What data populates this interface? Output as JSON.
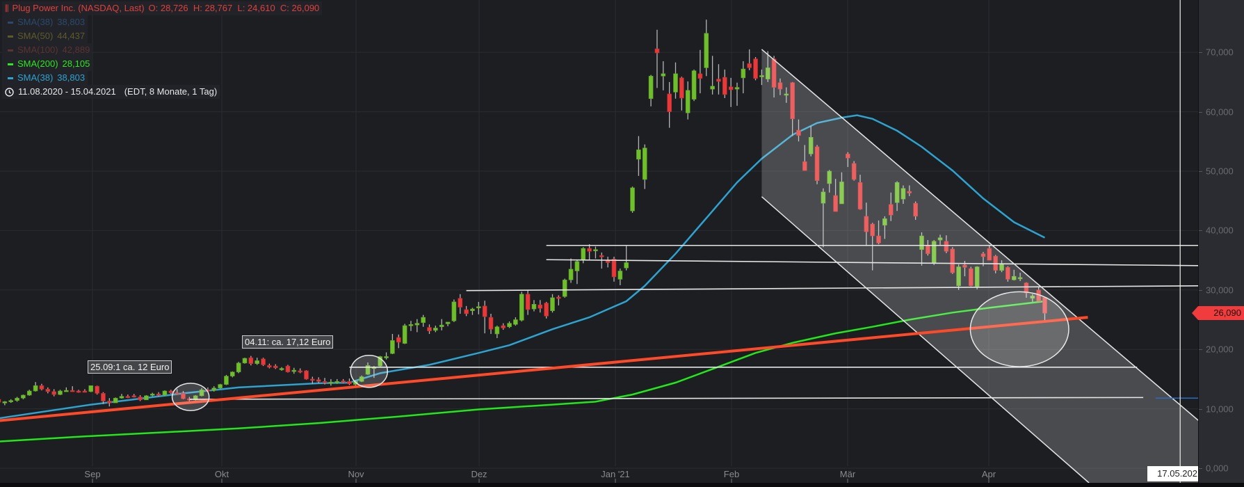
{
  "legend": {
    "title": "Plug Power Inc. (NASDAQ, Last)",
    "ohlc": "O: 28,726  H: 28,767  L: 24,610  C: 26,090",
    "indicators": [
      {
        "label": "SMA(38)",
        "value": "38,803",
        "color": "#2b4a6b"
      },
      {
        "label": "SMA(50)",
        "value": "44,437",
        "color": "#5f5a2c"
      },
      {
        "label": "SMA(100)",
        "value": "42,889",
        "color": "#5b3330"
      },
      {
        "label": "SMA(200)",
        "value": "28,105",
        "color": "#2ee81f"
      },
      {
        "label": "SMA(38)",
        "value": "38,803",
        "color": "#2ea3cf"
      }
    ],
    "range": "11.08.2020 - 15.04.2021",
    "range_info": "(EDT, 8 Monate, 1 Tag)"
  },
  "price_axis": {
    "labels": [
      "0,000",
      "10,000",
      "20,000",
      "30,000",
      "40,000",
      "50,000",
      "60,000",
      "70,000"
    ],
    "last_price_label": "26,090",
    "last_price": 26.09
  },
  "time_axis": {
    "labels": [
      "Sep",
      "Okt",
      "Nov",
      "Dez",
      "Jan '21",
      "Feb",
      "Mär",
      "Apr"
    ],
    "crosshair_date": "17.05.202"
  },
  "annotations": {
    "note1": "25.09:1 ca. 12 Euro",
    "note2": "04.11: ca. 17,12 Euro"
  },
  "colors": {
    "up": "#6fbe2c",
    "down": "#e8393a",
    "wick": "#b5b5b5",
    "trendline": "#ff4a2a",
    "drawing": "#e6e6e6"
  },
  "chart_data": {
    "type": "candlestick",
    "ylim": [
      0,
      78
    ],
    "grid": true,
    "candles_ohlc": [
      [
        11.6,
        11.9,
        10.9,
        11.1
      ],
      [
        11.0,
        11.3,
        10.6,
        11.2
      ],
      [
        11.3,
        11.6,
        11.0,
        11.4
      ],
      [
        11.4,
        12.0,
        11.2,
        11.8
      ],
      [
        11.8,
        12.4,
        11.6,
        12.3
      ],
      [
        12.3,
        13.2,
        12.2,
        13.0
      ],
      [
        13.0,
        14.5,
        12.9,
        13.9
      ],
      [
        13.9,
        14.2,
        13.1,
        13.3
      ],
      [
        13.3,
        13.6,
        12.6,
        12.9
      ],
      [
        12.9,
        13.3,
        12.1,
        12.4
      ],
      [
        12.4,
        13.2,
        12.3,
        13.0
      ],
      [
        13.0,
        13.6,
        12.9,
        13.1
      ],
      [
        13.1,
        13.8,
        12.9,
        13.0
      ],
      [
        13.0,
        13.2,
        12.7,
        12.9
      ],
      [
        13.0,
        13.3,
        12.8,
        12.9
      ],
      [
        12.9,
        13.9,
        12.8,
        13.9
      ],
      [
        13.8,
        13.9,
        12.4,
        12.6
      ],
      [
        12.6,
        12.8,
        10.8,
        11.3
      ],
      [
        11.3,
        11.8,
        10.4,
        11.0
      ],
      [
        11.0,
        11.9,
        11.0,
        11.8
      ],
      [
        11.8,
        12.5,
        11.7,
        12.1
      ],
      [
        12.1,
        12.4,
        11.8,
        12.0
      ],
      [
        12.2,
        12.5,
        11.9,
        12.0
      ],
      [
        12.0,
        12.3,
        11.3,
        11.5
      ],
      [
        11.5,
        12.3,
        11.5,
        12.2
      ],
      [
        12.3,
        12.7,
        12.1,
        12.5
      ],
      [
        12.5,
        12.8,
        12.1,
        12.3
      ],
      [
        12.3,
        13.1,
        12.2,
        13.0
      ],
      [
        13.0,
        13.2,
        12.5,
        12.7
      ],
      [
        12.7,
        13.3,
        12.5,
        12.6
      ],
      [
        12.6,
        13.0,
        11.6,
        11.7
      ],
      [
        11.7,
        12.0,
        10.9,
        11.5
      ],
      [
        11.5,
        12.3,
        11.4,
        12.2
      ],
      [
        12.2,
        13.5,
        12.1,
        13.2
      ],
      [
        13.2,
        13.6,
        12.9,
        13.0
      ],
      [
        13.1,
        13.8,
        12.9,
        13.5
      ],
      [
        13.5,
        14.2,
        13.4,
        14.1
      ],
      [
        14.1,
        15.7,
        14.0,
        15.5
      ],
      [
        15.5,
        16.3,
        15.3,
        16.2
      ],
      [
        16.2,
        17.9,
        16.0,
        17.7
      ],
      [
        17.7,
        18.6,
        17.6,
        18.5
      ],
      [
        18.6,
        18.9,
        17.3,
        17.6
      ],
      [
        17.6,
        18.6,
        17.4,
        18.1
      ],
      [
        18.4,
        18.6,
        17.2,
        17.4
      ],
      [
        17.3,
        17.6,
        16.8,
        17.0
      ],
      [
        17.2,
        17.5,
        16.7,
        16.9
      ],
      [
        16.7,
        17.0,
        16.4,
        16.8
      ],
      [
        17.2,
        17.4,
        16.1,
        16.2
      ],
      [
        16.3,
        16.9,
        15.9,
        16.5
      ],
      [
        16.4,
        16.8,
        16.0,
        16.3
      ],
      [
        16.4,
        16.5,
        14.9,
        15.0
      ],
      [
        15.0,
        15.4,
        14.2,
        14.8
      ],
      [
        14.9,
        15.3,
        14.3,
        14.6
      ],
      [
        14.6,
        15.2,
        14.1,
        14.4
      ],
      [
        14.4,
        15.0,
        13.9,
        14.5
      ],
      [
        14.5,
        15.0,
        14.2,
        14.6
      ],
      [
        14.7,
        15.0,
        14.3,
        14.5
      ],
      [
        14.6,
        15.1,
        14.0,
        14.2
      ],
      [
        14.1,
        14.8,
        13.9,
        14.6
      ],
      [
        14.6,
        15.6,
        14.5,
        15.4
      ],
      [
        15.8,
        17.8,
        15.7,
        17.3
      ],
      [
        16.8,
        17.2,
        15.2,
        17.0
      ],
      [
        17.2,
        18.9,
        17.1,
        18.8
      ],
      [
        18.8,
        19.5,
        18.3,
        18.8
      ],
      [
        19.3,
        22.6,
        19.2,
        21.5
      ],
      [
        22.0,
        22.5,
        20.2,
        21.2
      ],
      [
        21.0,
        24.3,
        20.9,
        24.0
      ],
      [
        24.0,
        24.8,
        23.1,
        24.2
      ],
      [
        24.1,
        25.1,
        22.9,
        24.4
      ],
      [
        24.5,
        25.8,
        23.8,
        25.4
      ],
      [
        23.7,
        24.2,
        22.6,
        23.1
      ],
      [
        23.2,
        24.0,
        22.9,
        23.6
      ],
      [
        23.8,
        25.1,
        23.2,
        24.1
      ],
      [
        24.3,
        24.6,
        23.9,
        24.6
      ],
      [
        24.8,
        28.4,
        24.6,
        28.0
      ],
      [
        28.6,
        29.3,
        26.0,
        27.1
      ],
      [
        26.7,
        27.3,
        25.6,
        26.0
      ],
      [
        26.5,
        27.0,
        25.8,
        26.8
      ],
      [
        27.0,
        28.0,
        25.9,
        27.2
      ],
      [
        27.3,
        28.2,
        22.7,
        25.5
      ],
      [
        25.4,
        26.0,
        22.6,
        23.4
      ],
      [
        22.6,
        24.0,
        21.9,
        23.8
      ],
      [
        24.0,
        24.4,
        23.3,
        23.6
      ],
      [
        23.8,
        24.7,
        23.6,
        24.4
      ],
      [
        24.2,
        25.4,
        24.0,
        25.0
      ],
      [
        24.9,
        29.7,
        24.7,
        29.3
      ],
      [
        29.3,
        30.0,
        25.8,
        26.7
      ],
      [
        26.8,
        28.3,
        26.4,
        27.6
      ],
      [
        27.5,
        28.3,
        26.2,
        26.9
      ],
      [
        27.8,
        28.0,
        25.2,
        25.6
      ],
      [
        26.5,
        29.3,
        26.2,
        28.7
      ],
      [
        28.8,
        29.1,
        27.4,
        28.7
      ],
      [
        28.9,
        31.9,
        28.7,
        31.7
      ],
      [
        31.7,
        35.3,
        31.2,
        33.5
      ],
      [
        33.2,
        35.1,
        31.0,
        34.8
      ],
      [
        35.0,
        37.2,
        34.5,
        37.0
      ],
      [
        37.0,
        37.7,
        35.0,
        36.5
      ],
      [
        36.6,
        37.3,
        35.3,
        36.8
      ],
      [
        35.8,
        36.3,
        33.6,
        35.6
      ],
      [
        35.0,
        35.6,
        33.8,
        34.6
      ],
      [
        35.2,
        35.6,
        31.4,
        32.2
      ],
      [
        31.8,
        33.6,
        30.8,
        33.2
      ],
      [
        33.7,
        37.4,
        33.3,
        34.6
      ],
      [
        43.3,
        47.4,
        43.0,
        47.2
      ],
      [
        52.0,
        55.9,
        49.2,
        53.6
      ],
      [
        48.6,
        54.5,
        47.0,
        53.9
      ],
      [
        62.2,
        66.2,
        60.9,
        66.0
      ],
      [
        70.6,
        73.8,
        64.0,
        69.9
      ],
      [
        66.0,
        68.5,
        63.6,
        66.4
      ],
      [
        63.0,
        65.0,
        57.3,
        60.0
      ],
      [
        63.3,
        68.3,
        62.2,
        66.4
      ],
      [
        65.7,
        65.9,
        60.2,
        62.3
      ],
      [
        59.8,
        65.1,
        58.7,
        63.6
      ],
      [
        62.1,
        67.1,
        61.8,
        66.9
      ],
      [
        66.4,
        70.4,
        63.1,
        65.6
      ],
      [
        67.4,
        75.5,
        66.0,
        73.2
      ],
      [
        63.8,
        69.4,
        62.9,
        64.3
      ],
      [
        65.5,
        68.0,
        62.9,
        65.1
      ],
      [
        65.8,
        67.1,
        62.3,
        62.9
      ],
      [
        64.2,
        65.7,
        60.8,
        63.7
      ],
      [
        63.8,
        64.9,
        61.0,
        64.1
      ],
      [
        65.7,
        68.5,
        63.1,
        67.2
      ],
      [
        68.1,
        70.5,
        67.0,
        67.4
      ],
      [
        68.9,
        69.2,
        65.3,
        65.6
      ],
      [
        65.9,
        67.1,
        64.5,
        66.1
      ],
      [
        65.5,
        70.2,
        65.0,
        67.4
      ],
      [
        68.9,
        69.4,
        62.4,
        64.1
      ],
      [
        64.9,
        65.6,
        62.8,
        63.8
      ],
      [
        62.9,
        64.1,
        61.5,
        63.0
      ],
      [
        64.9,
        65.0,
        55.9,
        58.8
      ],
      [
        56.9,
        58.7,
        55.0,
        56.0
      ],
      [
        51.6,
        54.4,
        50.1,
        50.1
      ],
      [
        52.9,
        57.6,
        52.5,
        55.7
      ],
      [
        54.1,
        54.4,
        47.8,
        48.4
      ],
      [
        44.6,
        47.1,
        37.2,
        46.5
      ],
      [
        47.9,
        50.2,
        46.4,
        50.0
      ],
      [
        45.9,
        48.7,
        43.2,
        43.2
      ],
      [
        44.5,
        49.8,
        44.5,
        48.2
      ],
      [
        52.9,
        53.2,
        50.7,
        52.2
      ],
      [
        51.3,
        51.7,
        48.4,
        48.6
      ],
      [
        48.1,
        49.4,
        43.5,
        43.6
      ],
      [
        42.4,
        44.7,
        37.4,
        39.8
      ],
      [
        41.1,
        41.3,
        33.3,
        39.1
      ],
      [
        39.1,
        41.7,
        37.7,
        37.9
      ],
      [
        40.9,
        42.4,
        38.6,
        42.0
      ],
      [
        44.4,
        46.4,
        41.6,
        42.6
      ],
      [
        44.7,
        48.3,
        43.3,
        48.1
      ],
      [
        45.3,
        47.6,
        44.5,
        47.1
      ],
      [
        46.6,
        47.6,
        45.8,
        46.3
      ],
      [
        44.6,
        44.9,
        41.8,
        42.4
      ],
      [
        36.8,
        39.7,
        34.1,
        39.1
      ],
      [
        37.5,
        38.4,
        35.8,
        36.1
      ],
      [
        34.5,
        38.4,
        34.2,
        38.2
      ],
      [
        38.4,
        39.3,
        37.6,
        38.8
      ],
      [
        38.2,
        39.2,
        36.2,
        36.5
      ],
      [
        36.9,
        37.2,
        32.7,
        32.9
      ],
      [
        30.7,
        34.3,
        30.0,
        33.9
      ],
      [
        34.2,
        34.9,
        32.3,
        33.8
      ],
      [
        33.6,
        33.9,
        30.6,
        30.7
      ],
      [
        30.6,
        34.0,
        30.1,
        33.9
      ],
      [
        36.1,
        36.4,
        34.0,
        35.6
      ],
      [
        37.0,
        37.5,
        35.0,
        35.0
      ],
      [
        35.7,
        35.9,
        32.8,
        33.3
      ],
      [
        33.3,
        35.0,
        33.0,
        34.4
      ],
      [
        33.8,
        34.0,
        31.4,
        31.8
      ],
      [
        31.7,
        33.4,
        31.6,
        32.3
      ],
      [
        32.0,
        32.9,
        31.5,
        32.1
      ],
      [
        31.2,
        31.3,
        28.7,
        29.5
      ],
      [
        28.6,
        29.3,
        28.0,
        29.0
      ],
      [
        30.0,
        30.5,
        28.1,
        28.1
      ],
      [
        28.726,
        28.767,
        24.61,
        26.09
      ]
    ],
    "sma38": [
      [
        0,
        8.4
      ],
      [
        15,
        10.7
      ],
      [
        30,
        12.6
      ],
      [
        39,
        13.6
      ],
      [
        52,
        14.3
      ],
      [
        57,
        14.4
      ],
      [
        62,
        16.0
      ],
      [
        70,
        17.4
      ],
      [
        78,
        19.4
      ],
      [
        83,
        20.7
      ],
      [
        90,
        23.4
      ],
      [
        96,
        25.4
      ],
      [
        102,
        28.1
      ],
      [
        105,
        30.7
      ],
      [
        110,
        36.1
      ],
      [
        115,
        42.1
      ],
      [
        120,
        48.1
      ],
      [
        124,
        52.1
      ],
      [
        129,
        56.1
      ],
      [
        133,
        58.1
      ],
      [
        137,
        59.0
      ],
      [
        139.5,
        59.4
      ],
      [
        142,
        58.8
      ],
      [
        146,
        56.8
      ],
      [
        150,
        54.1
      ],
      [
        155,
        50.1
      ],
      [
        160,
        45.4
      ],
      [
        165,
        41.4
      ],
      [
        170,
        38.8
      ]
    ],
    "sma200": [
      [
        0,
        4.5
      ],
      [
        13,
        5.3
      ],
      [
        26,
        6.0
      ],
      [
        39,
        6.7
      ],
      [
        52,
        7.6
      ],
      [
        65,
        8.7
      ],
      [
        78,
        9.9
      ],
      [
        90,
        10.7
      ],
      [
        97,
        11.2
      ],
      [
        103,
        12.4
      ],
      [
        110,
        14.4
      ],
      [
        116,
        16.7
      ],
      [
        123,
        19.4
      ],
      [
        129,
        21.1
      ],
      [
        136,
        22.7
      ],
      [
        142,
        23.8
      ],
      [
        148,
        25.0
      ],
      [
        155,
        26.2
      ],
      [
        161,
        27.0
      ],
      [
        170,
        28.1
      ]
    ],
    "drawings": {
      "trendline": [
        [
          0,
          8.0
        ],
        [
          177,
          25.4
        ]
      ],
      "horizontal_lines": [
        [
          [
            89,
            37.5
          ],
          [
            195,
            37.5
          ]
        ],
        [
          [
            89,
            35.1
          ],
          [
            195,
            34.1
          ]
        ],
        [
          [
            76,
            29.9
          ],
          [
            195,
            30.7
          ]
        ],
        [
          [
            57,
            17.0
          ],
          [
            185,
            17.0
          ]
        ],
        [
          [
            31,
            11.6
          ],
          [
            186,
            11.9
          ]
        ]
      ],
      "blue_marker_line": [
        [
          188,
          11.8
        ],
        [
          195,
          11.8
        ]
      ],
      "channel_top": [
        [
          124,
          70.5
        ],
        [
          195,
          8.0
        ]
      ],
      "channel_bottom": [
        [
          124,
          45.7
        ],
        [
          178,
          -3.2
        ]
      ],
      "ellipses": [
        {
          "center": [
            31.2,
            12.0
          ],
          "radius": [
            3.0,
            2.3
          ]
        },
        {
          "center": [
            60.2,
            16.3
          ],
          "radius": [
            3.0,
            2.7
          ]
        },
        {
          "center": [
            165.9,
            23.4
          ],
          "radius": [
            8.0,
            6.3
          ]
        }
      ],
      "crosshair_bar": 192
    }
  }
}
